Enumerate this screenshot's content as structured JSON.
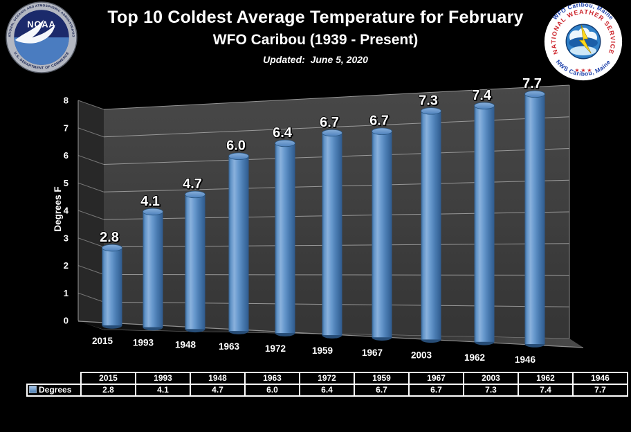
{
  "header": {
    "title": "Top 10 Coldest Average Temperature for February",
    "subtitle": "WFO Caribou (1939 - Present)",
    "updated": "Updated:  June 5, 2020"
  },
  "logos": {
    "noaa": {
      "ring_top": "NATIONAL OCEANIC AND ATMOSPHERIC ADMINISTRATION",
      "ring_bottom": "U.S. DEPARTMENT OF COMMERCE",
      "center_text": "NOAA"
    },
    "nws": {
      "outer_top": "WFO Caribou, Maine",
      "outer_bottom": "NWS Caribou, Maine",
      "ring_text": "NATIONAL WEATHER SERVICE",
      "stars": "★ ★ ★"
    }
  },
  "chart_data": {
    "type": "bar",
    "style": "3d-cylinder",
    "title": "Top 10 Coldest Average Temperature for February",
    "subtitle": "WFO Caribou (1939 - Present)",
    "categories": [
      "2015",
      "1993",
      "1948",
      "1963",
      "1972",
      "1959",
      "1967",
      "2003",
      "1962",
      "1946"
    ],
    "values": [
      2.8,
      4.1,
      4.7,
      6.0,
      6.4,
      6.7,
      6.7,
      7.3,
      7.4,
      7.7
    ],
    "value_labels": [
      "2.8",
      "4.1",
      "4.7",
      "6.0",
      "6.4",
      "6.7",
      "6.7",
      "7.3",
      "7.4",
      "7.7"
    ],
    "series_name": "Degrees",
    "xlabel": "",
    "ylabel": "Degrees F",
    "ylim": [
      0,
      8
    ],
    "ytick_step": 1,
    "yticks": [
      "0",
      "1",
      "2",
      "3",
      "4",
      "5",
      "6",
      "7",
      "8"
    ],
    "grid": "on",
    "legend_position": "bottom-table",
    "bar_color": "#5b8cc4",
    "wall_color": "#3e3e3e",
    "gridline_color": "#a8a8a8",
    "background_color": "#000000",
    "label_color": "#ffffff"
  },
  "table": {
    "row_label": "Degrees",
    "columns": [
      "2015",
      "1993",
      "1948",
      "1963",
      "1972",
      "1959",
      "1967",
      "2003",
      "1962",
      "1946"
    ],
    "values": [
      "2.8",
      "4.1",
      "4.7",
      "6.0",
      "6.4",
      "6.7",
      "6.7",
      "7.3",
      "7.4",
      "7.7"
    ]
  }
}
